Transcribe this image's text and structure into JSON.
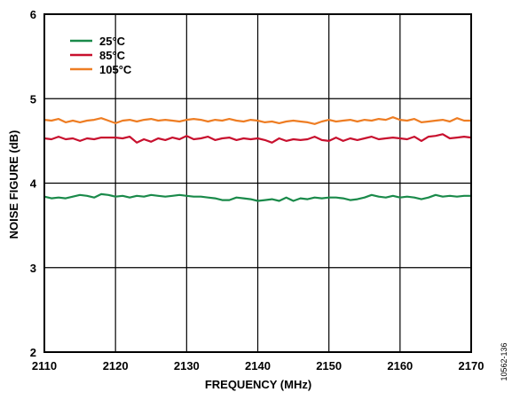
{
  "figure_id": "10562-136",
  "chart_data": {
    "type": "line",
    "xlabel": "FREQUENCY (MHz)",
    "ylabel": "NOISE FIGURE (dB)",
    "xlim": [
      2110,
      2170
    ],
    "ylim": [
      2,
      6
    ],
    "xticks": [
      2110,
      2120,
      2130,
      2140,
      2150,
      2160,
      2170
    ],
    "yticks": [
      2,
      3,
      4,
      5,
      6
    ],
    "grid": true,
    "legend_position": "top-left",
    "x": [
      2110,
      2111,
      2112,
      2113,
      2114,
      2115,
      2116,
      2117,
      2118,
      2119,
      2120,
      2121,
      2122,
      2123,
      2124,
      2125,
      2126,
      2127,
      2128,
      2129,
      2130,
      2131,
      2132,
      2133,
      2134,
      2135,
      2136,
      2137,
      2138,
      2139,
      2140,
      2141,
      2142,
      2143,
      2144,
      2145,
      2146,
      2147,
      2148,
      2149,
      2150,
      2151,
      2152,
      2153,
      2154,
      2155,
      2156,
      2157,
      2158,
      2159,
      2160,
      2161,
      2162,
      2163,
      2164,
      2165,
      2166,
      2167,
      2168,
      2169,
      2170
    ],
    "series": [
      {
        "name": "25°C",
        "color": "#1a8a4a",
        "values": [
          3.84,
          3.82,
          3.83,
          3.82,
          3.84,
          3.86,
          3.85,
          3.83,
          3.87,
          3.86,
          3.84,
          3.85,
          3.83,
          3.85,
          3.84,
          3.86,
          3.85,
          3.84,
          3.85,
          3.86,
          3.85,
          3.84,
          3.84,
          3.83,
          3.82,
          3.8,
          3.8,
          3.83,
          3.82,
          3.81,
          3.79,
          3.8,
          3.81,
          3.79,
          3.83,
          3.79,
          3.82,
          3.81,
          3.83,
          3.82,
          3.83,
          3.83,
          3.82,
          3.8,
          3.81,
          3.83,
          3.86,
          3.84,
          3.83,
          3.85,
          3.83,
          3.84,
          3.83,
          3.81,
          3.83,
          3.86,
          3.84,
          3.85,
          3.84,
          3.85,
          3.85
        ]
      },
      {
        "name": "85°C",
        "color": "#c8102e",
        "values": [
          4.53,
          4.52,
          4.55,
          4.52,
          4.53,
          4.5,
          4.53,
          4.52,
          4.54,
          4.54,
          4.54,
          4.53,
          4.55,
          4.48,
          4.52,
          4.49,
          4.53,
          4.51,
          4.54,
          4.52,
          4.56,
          4.52,
          4.53,
          4.55,
          4.51,
          4.53,
          4.54,
          4.51,
          4.53,
          4.52,
          4.53,
          4.51,
          4.48,
          4.53,
          4.5,
          4.52,
          4.51,
          4.52,
          4.55,
          4.51,
          4.5,
          4.54,
          4.5,
          4.53,
          4.51,
          4.53,
          4.55,
          4.52,
          4.53,
          4.54,
          4.53,
          4.52,
          4.55,
          4.5,
          4.55,
          4.56,
          4.58,
          4.53,
          4.54,
          4.55,
          4.54
        ]
      },
      {
        "name": "105°C",
        "color": "#ee7d23",
        "values": [
          4.75,
          4.74,
          4.76,
          4.72,
          4.74,
          4.72,
          4.74,
          4.75,
          4.77,
          4.74,
          4.71,
          4.74,
          4.75,
          4.73,
          4.75,
          4.76,
          4.74,
          4.75,
          4.74,
          4.73,
          4.75,
          4.76,
          4.75,
          4.73,
          4.75,
          4.74,
          4.76,
          4.74,
          4.73,
          4.75,
          4.74,
          4.72,
          4.73,
          4.71,
          4.73,
          4.74,
          4.73,
          4.72,
          4.7,
          4.73,
          4.75,
          4.73,
          4.74,
          4.75,
          4.73,
          4.75,
          4.74,
          4.76,
          4.75,
          4.78,
          4.75,
          4.74,
          4.76,
          4.72,
          4.73,
          4.74,
          4.75,
          4.73,
          4.77,
          4.74,
          4.74
        ]
      }
    ]
  }
}
